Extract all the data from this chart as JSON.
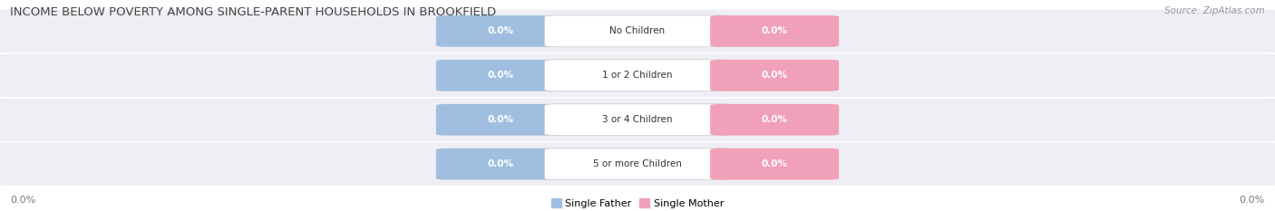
{
  "title": "INCOME BELOW POVERTY AMONG SINGLE-PARENT HOUSEHOLDS IN BROOKFIELD",
  "source": "Source: ZipAtlas.com",
  "categories": [
    "No Children",
    "1 or 2 Children",
    "3 or 4 Children",
    "5 or more Children"
  ],
  "father_values": [
    0.0,
    0.0,
    0.0,
    0.0
  ],
  "mother_values": [
    0.0,
    0.0,
    0.0,
    0.0
  ],
  "father_color": "#a0bfe0",
  "mother_color": "#f0a0b8",
  "row_bg_color": "#eeeef4",
  "title_fontsize": 9.5,
  "source_fontsize": 7.5,
  "axis_label_value": "0.0%",
  "legend_father": "Single Father",
  "legend_mother": "Single Mother",
  "background_color": "#ffffff",
  "tag_value_text": "0.0%",
  "title_color": "#444444",
  "source_color": "#999999",
  "axis_color": "#777777",
  "cat_label_color": "#333333",
  "value_text_color": "#ffffff"
}
